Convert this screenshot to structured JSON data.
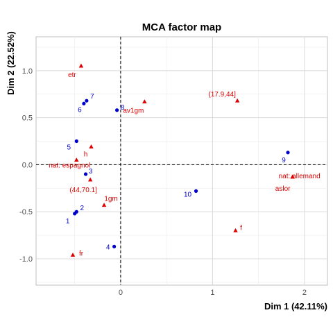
{
  "chart_data": {
    "type": "scatter",
    "title": "MCA factor map",
    "xlabel": "Dim 1 (42.11%)",
    "ylabel": "Dim 2 (22.52%)",
    "xlim": [
      -0.92,
      2.25
    ],
    "ylim": [
      -1.28,
      1.36
    ],
    "x_ticks": [
      0,
      1,
      2
    ],
    "y_ticks": [
      -1.0,
      -0.5,
      0.0,
      0.5,
      1.0
    ],
    "x_tick_labels": [
      "0",
      "1",
      "2"
    ],
    "y_tick_labels": [
      "-1.0",
      "-0.5",
      "0.0",
      "0.5",
      "1.0"
    ],
    "grid": true,
    "reference_lines": {
      "x": 0,
      "y": 0,
      "style": "dashed"
    },
    "colors": {
      "individuals": "#0000cc",
      "categories": "#dd0000",
      "panel_border": "#bfbfbf",
      "grid_major": "#d9d9d9",
      "grid_minor": "#ececec"
    },
    "series": [
      {
        "name": "individuals",
        "marker": "circle",
        "points": [
          {
            "label": "1",
            "x": -0.5,
            "y": -0.52
          },
          {
            "label": "2",
            "x": -0.48,
            "y": -0.5
          },
          {
            "label": "3",
            "x": -0.38,
            "y": -0.1
          },
          {
            "label": "4",
            "x": -0.07,
            "y": -0.87
          },
          {
            "label": "5",
            "x": -0.48,
            "y": 0.25
          },
          {
            "label": "6",
            "x": -0.4,
            "y": 0.65
          },
          {
            "label": "7",
            "x": -0.37,
            "y": 0.68
          },
          {
            "label": "8",
            "x": -0.04,
            "y": 0.58
          },
          {
            "label": "9",
            "x": 1.82,
            "y": 0.13
          },
          {
            "label": "10",
            "x": 0.82,
            "y": -0.28
          }
        ]
      },
      {
        "name": "categories",
        "marker": "triangle",
        "points": [
          {
            "label": "etr",
            "x": -0.43,
            "y": 1.05
          },
          {
            "label": "av1gm",
            "x": 0.26,
            "y": 0.67
          },
          {
            "label": "(17.9,44]",
            "x": 1.27,
            "y": 0.68
          },
          {
            "label": "h",
            "x": -0.32,
            "y": 0.19
          },
          {
            "label": "nat: espagnol",
            "x": -0.48,
            "y": 0.05
          },
          {
            "label": "nat: allemand",
            "x": 1.87,
            "y": -0.13
          },
          {
            "label": "aslor",
            "x": 1.87,
            "y": -0.13
          },
          {
            "label": "(44,70.1]",
            "x": -0.33,
            "y": -0.16
          },
          {
            "label": "1gm",
            "x": -0.18,
            "y": -0.43
          },
          {
            "label": "f",
            "x": 1.25,
            "y": -0.7
          },
          {
            "label": "fr",
            "x": -0.52,
            "y": -0.96
          }
        ]
      }
    ]
  }
}
